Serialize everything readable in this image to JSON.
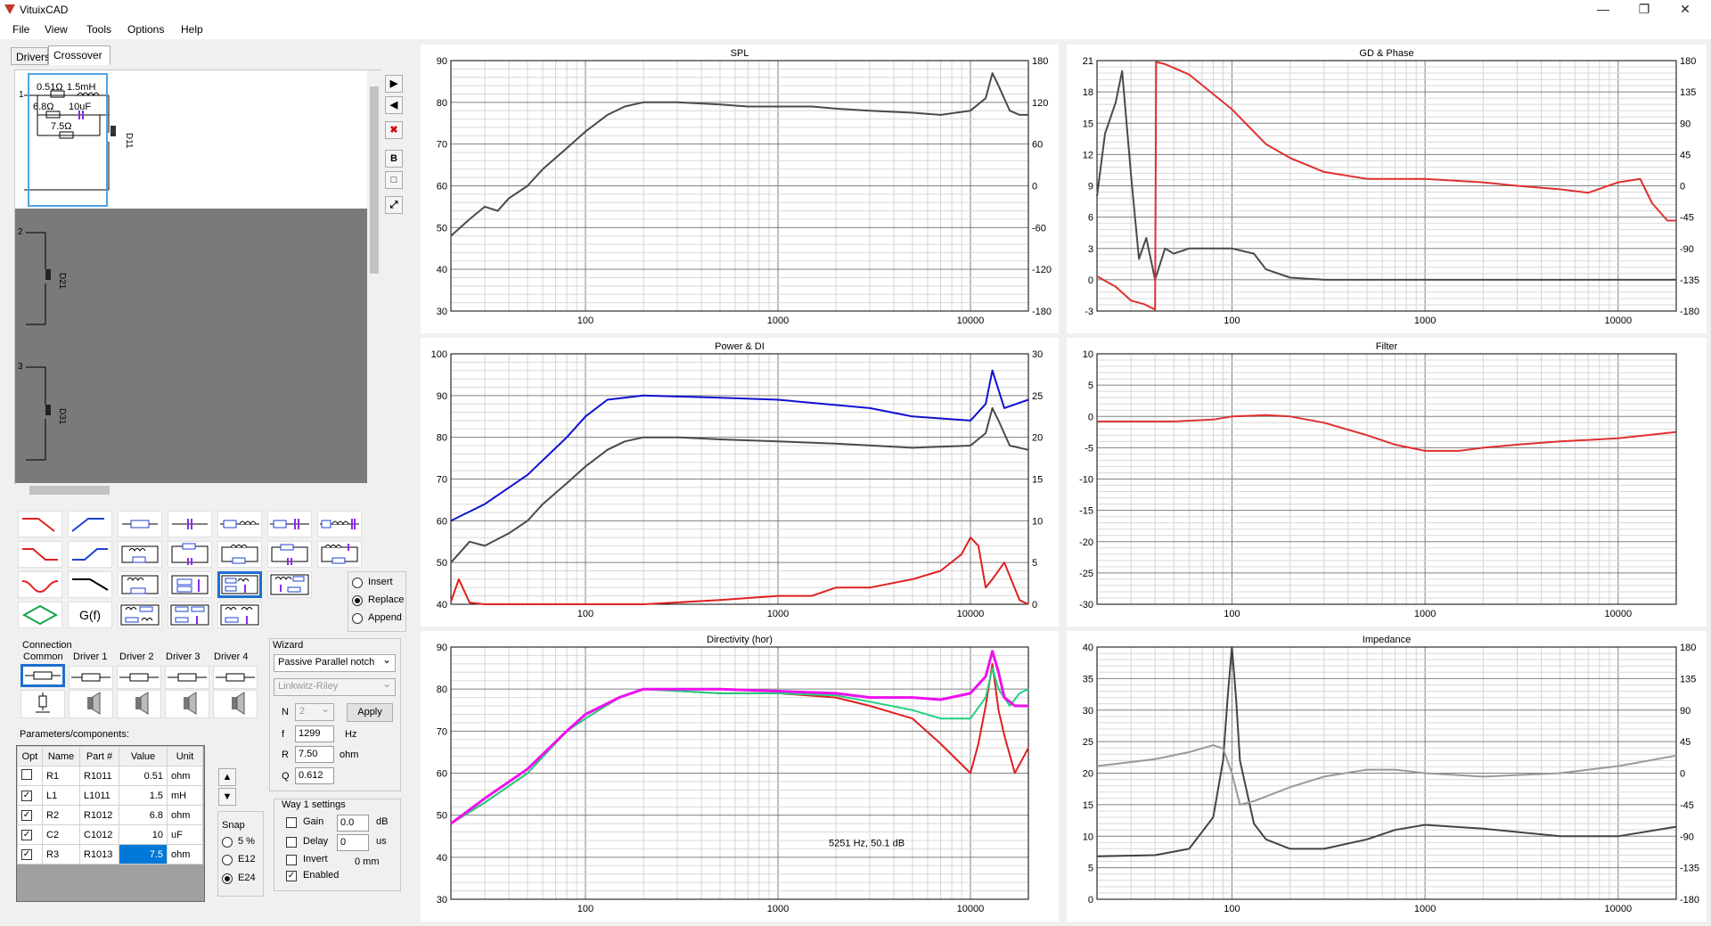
{
  "app": {
    "title": "VituixCAD"
  },
  "menu": [
    "File",
    "View",
    "Tools",
    "Options",
    "Help"
  ],
  "tabs": {
    "drivers": "Drivers",
    "crossover": "Crossover"
  },
  "schematic": {
    "ways": [
      "1",
      "2",
      "3"
    ],
    "way1_components": {
      "r1": "0.51Ω",
      "l1": "1.5mH",
      "r2": "6.8Ω",
      "c2": "10uF",
      "r3": "7.5Ω",
      "driver": "D11"
    },
    "way2_driver": "D21",
    "way3_driver": "D31"
  },
  "side_tools": {
    "bold": "B"
  },
  "palette": {
    "gf": "G(f)"
  },
  "mode": {
    "insert": "Insert",
    "replace": "Replace",
    "append": "Append",
    "selected": "replace"
  },
  "connection": {
    "title": "Connection",
    "common": "Common",
    "drivers": [
      "Driver 1",
      "Driver 2",
      "Driver 3",
      "Driver 4"
    ]
  },
  "wizard": {
    "title": "Wizard",
    "type": "Passive Parallel notch",
    "alignment": "Linkwitz-Riley",
    "n_label": "N",
    "n_value": "2",
    "f_label": "f",
    "f_value": "1299",
    "f_unit": "Hz",
    "r_label": "R",
    "r_value": "7.50",
    "r_unit": "ohm",
    "q_label": "Q",
    "q_value": "0.612",
    "apply": "Apply"
  },
  "parameters": {
    "title": "Parameters/components:",
    "headers": [
      "Opt",
      "Name",
      "Part #",
      "Value",
      "Unit"
    ],
    "rows": [
      {
        "opt": false,
        "name": "R1",
        "part": "R1011",
        "value": "0.51",
        "unit": "ohm"
      },
      {
        "opt": true,
        "name": "L1",
        "part": "L1011",
        "value": "1.5",
        "unit": "mH"
      },
      {
        "opt": true,
        "name": "R2",
        "part": "R1012",
        "value": "6.8",
        "unit": "ohm"
      },
      {
        "opt": true,
        "name": "C2",
        "part": "C1012",
        "value": "10",
        "unit": "uF"
      },
      {
        "opt": true,
        "name": "R3",
        "part": "R1013",
        "value": "7.5",
        "unit": "ohm"
      }
    ]
  },
  "snap": {
    "title": "Snap",
    "options": [
      "5 %",
      "E12",
      "E24"
    ],
    "selected": "E24"
  },
  "way_settings": {
    "title": "Way 1 settings",
    "gain_label": "Gain",
    "gain_value": "0.0",
    "gain_unit": "dB",
    "delay_label": "Delay",
    "delay_value": "0",
    "delay_unit": "us",
    "delay_mm": "0 mm",
    "invert_label": "Invert",
    "enabled_label": "Enabled",
    "gain": false,
    "delay": false,
    "invert": false,
    "enabled": true
  },
  "chart_data": [
    {
      "type": "line",
      "title": "SPL",
      "xscale": "log",
      "xlim": [
        20,
        20000
      ],
      "x_ticks": [
        "100",
        "1000",
        "10000"
      ],
      "ylim": [
        30,
        90
      ],
      "y_ticks": [
        "90",
        "80",
        "70",
        "60",
        "50",
        "40",
        "30"
      ],
      "y2lim": [
        -180,
        180
      ],
      "y2_ticks": [
        "180",
        "120",
        "60",
        "0",
        "-60",
        "-120",
        "-180"
      ],
      "series": [
        {
          "color": "#4a4a4a",
          "axis": "left",
          "x": [
            20,
            25,
            30,
            35,
            40,
            50,
            60,
            80,
            100,
            130,
            160,
            200,
            300,
            500,
            700,
            1000,
            1500,
            2000,
            3000,
            5000,
            7000,
            10000,
            12000,
            13000,
            14000,
            16000,
            18000,
            20000
          ],
          "y": [
            48,
            52,
            55,
            54,
            57,
            60,
            64,
            69,
            73,
            77,
            79,
            80,
            80,
            79.5,
            79,
            79,
            79,
            78.5,
            78,
            77.5,
            77,
            78,
            81,
            87,
            84,
            78,
            77,
            77
          ]
        }
      ]
    },
    {
      "type": "line",
      "title": "GD & Phase",
      "xscale": "log",
      "xlim": [
        20,
        20000
      ],
      "x_ticks": [
        "100",
        "1000",
        "10000"
      ],
      "ylim": [
        -3,
        21
      ],
      "y_ticks": [
        "21",
        "18",
        "15",
        "12",
        "9",
        "6",
        "3",
        "0",
        "-3"
      ],
      "y2lim": [
        -180,
        180
      ],
      "y2_ticks": [
        "180",
        "135",
        "90",
        "45",
        "0",
        "-45",
        "-90",
        "-135",
        "-180"
      ],
      "series": [
        {
          "color": "#4a4a4a",
          "axis": "left",
          "x": [
            20,
            22,
            25,
            27,
            30,
            33,
            36,
            40,
            45,
            50,
            60,
            80,
            100,
            130,
            150,
            200,
            300,
            500,
            1000,
            2000,
            5000,
            10000,
            20000
          ],
          "y": [
            8,
            14,
            17,
            20,
            10,
            2,
            4,
            0,
            3,
            2.5,
            3,
            3,
            3,
            2.5,
            1,
            0.2,
            0,
            0,
            0,
            0,
            0,
            0,
            0
          ]
        },
        {
          "color": "#e03030",
          "axis": "right",
          "x": [
            20,
            25,
            30,
            35,
            40,
            40.5,
            45,
            60,
            100,
            150,
            200,
            300,
            500,
            1000,
            2000,
            3000,
            5000,
            7000,
            10000,
            13000,
            15000,
            18000,
            20000
          ],
          "y": [
            -130,
            -145,
            -165,
            -170,
            -178,
            178,
            175,
            160,
            110,
            60,
            40,
            20,
            10,
            10,
            5,
            0,
            -5,
            -10,
            5,
            10,
            -25,
            -50,
            -50
          ]
        }
      ]
    },
    {
      "type": "line",
      "title": "Power & DI",
      "xscale": "log",
      "xlim": [
        20,
        20000
      ],
      "x_ticks": [
        "100",
        "1000",
        "10000"
      ],
      "ylim": [
        40,
        100
      ],
      "y_ticks": [
        "100",
        "90",
        "80",
        "70",
        "60",
        "50",
        "40"
      ],
      "y2lim": [
        0,
        30
      ],
      "y2_ticks": [
        "30",
        "25",
        "20",
        "15",
        "10",
        "5",
        "0"
      ],
      "series": [
        {
          "color": "#1010d0",
          "axis": "left",
          "x": [
            20,
            30,
            50,
            80,
            100,
            130,
            200,
            500,
            1000,
            3000,
            5000,
            10000,
            12000,
            13000,
            15000,
            20000
          ],
          "y": [
            60,
            64,
            71,
            80,
            85,
            89,
            90,
            89.5,
            89,
            87,
            85,
            84,
            88,
            96,
            87,
            89
          ]
        },
        {
          "color": "#4a4a4a",
          "axis": "left",
          "x": [
            20,
            25,
            30,
            40,
            50,
            60,
            80,
            100,
            130,
            160,
            200,
            300,
            500,
            1000,
            2000,
            5000,
            10000,
            12000,
            13000,
            14000,
            16000,
            20000
          ],
          "y": [
            50,
            55,
            54,
            57,
            60,
            64,
            69,
            73,
            77,
            79,
            80,
            80,
            79.5,
            79,
            78.5,
            77.5,
            78,
            81,
            87,
            84,
            78,
            77
          ]
        },
        {
          "color": "#e02020",
          "axis": "right",
          "x": [
            20,
            22,
            25,
            30,
            50,
            100,
            200,
            500,
            1000,
            1500,
            2000,
            3000,
            5000,
            7000,
            9000,
            10000,
            11000,
            12000,
            13000,
            15000,
            18000,
            20000
          ],
          "y": [
            0.3,
            3,
            0.2,
            0,
            0,
            0,
            0,
            0.5,
            1,
            1,
            2,
            2,
            3,
            4,
            6,
            8,
            7,
            2,
            3,
            5,
            0.5,
            0
          ]
        }
      ]
    },
    {
      "type": "line",
      "title": "Filter",
      "xscale": "log",
      "xlim": [
        20,
        20000
      ],
      "x_ticks": [
        "100",
        "1000",
        "10000"
      ],
      "ylim": [
        -30,
        10
      ],
      "y_ticks": [
        "10",
        "5",
        "0",
        "-5",
        "-10",
        "-15",
        "-20",
        "-25",
        "-30"
      ],
      "series": [
        {
          "color": "#e03030",
          "axis": "left",
          "x": [
            20,
            50,
            80,
            100,
            150,
            200,
            300,
            500,
            700,
            1000,
            1500,
            2000,
            3000,
            5000,
            10000,
            20000
          ],
          "y": [
            -0.8,
            -0.8,
            -0.5,
            0,
            0.2,
            0,
            -1,
            -3,
            -4.5,
            -5.5,
            -5.5,
            -5,
            -4.5,
            -4,
            -3.5,
            -2.5
          ]
        }
      ]
    },
    {
      "type": "line",
      "title": "Directivity (hor)",
      "xscale": "log",
      "xlim": [
        20,
        20000
      ],
      "x_ticks": [
        "100",
        "1000",
        "10000"
      ],
      "ylim": [
        30,
        90
      ],
      "y_ticks": [
        "90",
        "80",
        "70",
        "60",
        "50",
        "40",
        "30"
      ],
      "annotation": "5251 Hz, 50.1 dB",
      "series": [
        {
          "color": "#e02020",
          "axis": "left",
          "x": [
            20,
            30,
            50,
            80,
            100,
            150,
            200,
            500,
            1000,
            2000,
            3000,
            5000,
            7000,
            10000,
            11000,
            12000,
            13000,
            14000,
            15000,
            17000,
            20000
          ],
          "y": [
            48,
            53,
            60,
            70,
            73,
            78,
            80,
            79,
            79,
            78,
            76,
            73,
            67,
            60,
            67,
            76,
            86,
            75,
            69,
            60,
            66
          ]
        },
        {
          "color": "#20d080",
          "axis": "left",
          "x": [
            20,
            30,
            50,
            80,
            100,
            150,
            200,
            500,
            1000,
            2000,
            3000,
            5000,
            7000,
            10000,
            12000,
            13000,
            14000,
            16000,
            18000,
            20000
          ],
          "y": [
            48,
            53,
            60,
            70,
            73,
            78,
            80,
            79,
            79,
            78.5,
            77,
            75,
            73,
            73,
            78,
            85,
            80,
            76,
            79,
            80
          ]
        },
        {
          "color": "#ee10ee",
          "axis": "left",
          "x": [
            20,
            30,
            50,
            80,
            100,
            150,
            200,
            500,
            1000,
            2000,
            3000,
            5000,
            7000,
            10000,
            12000,
            13000,
            14000,
            15000,
            17000,
            20000
          ],
          "y": [
            48,
            54,
            61,
            70,
            74,
            78,
            80,
            80,
            79.5,
            79,
            78,
            78,
            77.5,
            79,
            83,
            89,
            84,
            78,
            76,
            76
          ]
        }
      ]
    },
    {
      "type": "line",
      "title": "Impedance",
      "xscale": "log",
      "xlim": [
        20,
        20000
      ],
      "x_ticks": [
        "100",
        "1000",
        "10000"
      ],
      "ylim": [
        0,
        40
      ],
      "y_ticks": [
        "40",
        "35",
        "30",
        "25",
        "20",
        "15",
        "10",
        "5",
        "0"
      ],
      "y2lim": [
        -180,
        180
      ],
      "y2_ticks": [
        "180",
        "135",
        "90",
        "45",
        "0",
        "-45",
        "-90",
        "-135",
        "-180"
      ],
      "series": [
        {
          "color": "#444444",
          "axis": "left",
          "x": [
            20,
            40,
            60,
            80,
            90,
            95,
            100,
            105,
            110,
            130,
            150,
            200,
            300,
            500,
            700,
            1000,
            2000,
            5000,
            10000,
            20000
          ],
          "y": [
            6.8,
            7,
            8,
            13,
            22,
            32,
            40,
            32,
            22,
            12,
            9.5,
            8,
            8,
            9.5,
            11,
            11.8,
            11.2,
            10,
            10,
            11.5
          ]
        },
        {
          "color": "#999999",
          "axis": "right",
          "x": [
            20,
            40,
            60,
            80,
            90,
            100,
            110,
            130,
            200,
            300,
            500,
            700,
            1000,
            2000,
            5000,
            10000,
            20000
          ],
          "y": [
            10,
            20,
            30,
            40,
            35,
            0,
            -45,
            -40,
            -20,
            -5,
            5,
            5,
            0,
            -5,
            0,
            10,
            25
          ]
        }
      ]
    }
  ]
}
